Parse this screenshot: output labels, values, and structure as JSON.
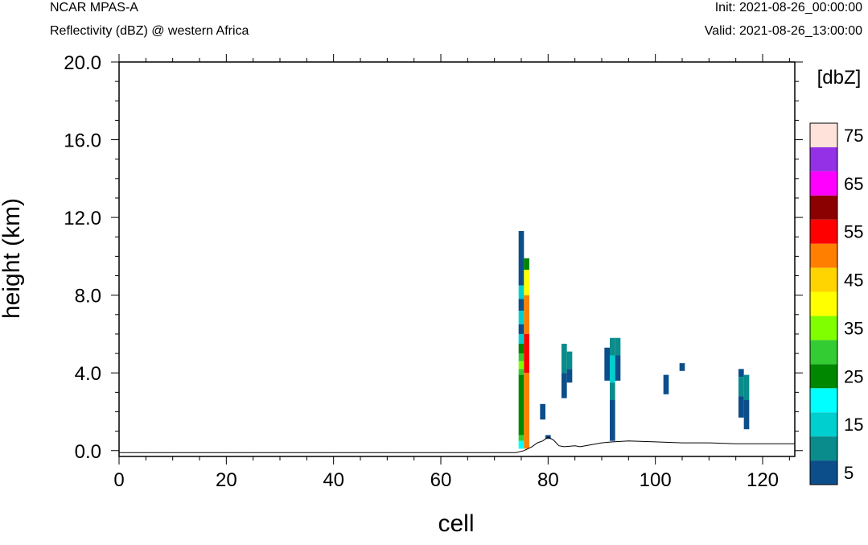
{
  "header": {
    "model": "NCAR MPAS-A",
    "field": "Reflectivity (dBZ) @ western Africa",
    "init": "Init: 2021-08-26_00:00:00",
    "valid": "Valid: 2021-08-26_13:00:00"
  },
  "chart_data": {
    "type": "heatmap",
    "xlabel": "cell",
    "ylabel": "height (km)",
    "xlim": [
      0,
      126
    ],
    "ylim": [
      -0.3,
      20.0
    ],
    "x_ticks": [
      "0",
      "20",
      "40",
      "60",
      "80",
      "100",
      "120"
    ],
    "x_tick_values": [
      0,
      20,
      40,
      60,
      80,
      100,
      120
    ],
    "y_ticks": [
      "0.0",
      "4.0",
      "8.0",
      "12.0",
      "16.0",
      "20.0"
    ],
    "y_tick_values": [
      0,
      4,
      8,
      12,
      16,
      20
    ],
    "colorbar": {
      "title": "[dbZ]",
      "levels": [
        5,
        10,
        15,
        20,
        25,
        30,
        35,
        40,
        45,
        50,
        55,
        60,
        65,
        70,
        75
      ],
      "labels": [
        "5",
        "15",
        "25",
        "35",
        "45",
        "55",
        "65",
        "75"
      ],
      "label_values": [
        5,
        15,
        25,
        35,
        45,
        55,
        65,
        75
      ],
      "colors": [
        "#0c4e8a",
        "#0a8c8c",
        "#00cfcf",
        "#00ffff",
        "#008700",
        "#33cc33",
        "#80ff00",
        "#ffff00",
        "#ffd400",
        "#ff8000",
        "#ff0000",
        "#8b0000",
        "#ff00ff",
        "#9430e6",
        "#ffe2d9"
      ]
    },
    "cells": [
      {
        "x": 75,
        "z0": 8.5,
        "z1": 11.3,
        "dbz": 5
      },
      {
        "x": 75,
        "z0": 7.8,
        "z1": 8.5,
        "dbz": 15
      },
      {
        "x": 75,
        "z0": 7.2,
        "z1": 7.8,
        "dbz": 5
      },
      {
        "x": 75,
        "z0": 6.5,
        "z1": 7.2,
        "dbz": 15
      },
      {
        "x": 75,
        "z0": 6.0,
        "z1": 6.5,
        "dbz": 5
      },
      {
        "x": 75,
        "z0": 5.5,
        "z1": 6.0,
        "dbz": 15
      },
      {
        "x": 75,
        "z0": 5.0,
        "z1": 5.5,
        "dbz": 25
      },
      {
        "x": 75,
        "z0": 4.6,
        "z1": 5.0,
        "dbz": 30
      },
      {
        "x": 75,
        "z0": 4.2,
        "z1": 4.6,
        "dbz": 35
      },
      {
        "x": 75,
        "z0": 3.9,
        "z1": 4.2,
        "dbz": 30
      },
      {
        "x": 75,
        "z0": 0.8,
        "z1": 3.9,
        "dbz": 25
      },
      {
        "x": 75,
        "z0": 0.5,
        "z1": 0.8,
        "dbz": 30
      },
      {
        "x": 75,
        "z0": 0.1,
        "z1": 0.5,
        "dbz": 20
      },
      {
        "x": 76,
        "z0": 9.3,
        "z1": 9.9,
        "dbz": 25
      },
      {
        "x": 76,
        "z0": 8.0,
        "z1": 9.3,
        "dbz": 40
      },
      {
        "x": 76,
        "z0": 6.0,
        "z1": 8.0,
        "dbz": 50
      },
      {
        "x": 76,
        "z0": 5.5,
        "z1": 6.0,
        "dbz": 55
      },
      {
        "x": 76,
        "z0": 4.0,
        "z1": 5.5,
        "dbz": 55
      },
      {
        "x": 76,
        "z0": 0.1,
        "z1": 4.0,
        "dbz": 50
      },
      {
        "x": 79,
        "z0": 1.6,
        "z1": 2.4,
        "dbz": 5
      },
      {
        "x": 80,
        "z0": 0.6,
        "z1": 0.8,
        "dbz": 5
      },
      {
        "x": 83,
        "z0": 4.0,
        "z1": 5.5,
        "dbz": 10
      },
      {
        "x": 83,
        "z0": 2.7,
        "z1": 4.0,
        "dbz": 5
      },
      {
        "x": 84,
        "z0": 4.2,
        "z1": 5.1,
        "dbz": 10
      },
      {
        "x": 84,
        "z0": 3.5,
        "z1": 4.2,
        "dbz": 5
      },
      {
        "x": 91,
        "z0": 3.6,
        "z1": 5.3,
        "dbz": 5
      },
      {
        "x": 92,
        "z0": 4.9,
        "z1": 5.8,
        "dbz": 10
      },
      {
        "x": 92,
        "z0": 3.5,
        "z1": 4.9,
        "dbz": 15
      },
      {
        "x": 92,
        "z0": 2.6,
        "z1": 3.5,
        "dbz": 10
      },
      {
        "x": 92,
        "z0": 0.5,
        "z1": 2.6,
        "dbz": 5
      },
      {
        "x": 93,
        "z0": 4.9,
        "z1": 5.8,
        "dbz": 10
      },
      {
        "x": 93,
        "z0": 3.6,
        "z1": 4.9,
        "dbz": 5
      },
      {
        "x": 102,
        "z0": 2.9,
        "z1": 3.9,
        "dbz": 5
      },
      {
        "x": 105,
        "z0": 4.1,
        "z1": 4.5,
        "dbz": 5
      },
      {
        "x": 116,
        "z0": 3.8,
        "z1": 4.2,
        "dbz": 5
      },
      {
        "x": 116,
        "z0": 2.8,
        "z1": 3.8,
        "dbz": 10
      },
      {
        "x": 116,
        "z0": 1.7,
        "z1": 2.8,
        "dbz": 5
      },
      {
        "x": 117,
        "z0": 2.6,
        "z1": 3.9,
        "dbz": 10
      },
      {
        "x": 117,
        "z0": 1.1,
        "z1": 2.6,
        "dbz": 5
      }
    ],
    "terrain": {
      "x": [
        0,
        74,
        75.5,
        77,
        78,
        79,
        80,
        81,
        82,
        83,
        85,
        86,
        88,
        90,
        92,
        95,
        100,
        105,
        110,
        115,
        120,
        126
      ],
      "z": [
        -0.1,
        -0.1,
        0.0,
        0.2,
        0.4,
        0.5,
        0.7,
        0.55,
        0.25,
        0.2,
        0.25,
        0.2,
        0.3,
        0.4,
        0.45,
        0.5,
        0.45,
        0.4,
        0.4,
        0.35,
        0.35,
        0.35
      ]
    }
  }
}
